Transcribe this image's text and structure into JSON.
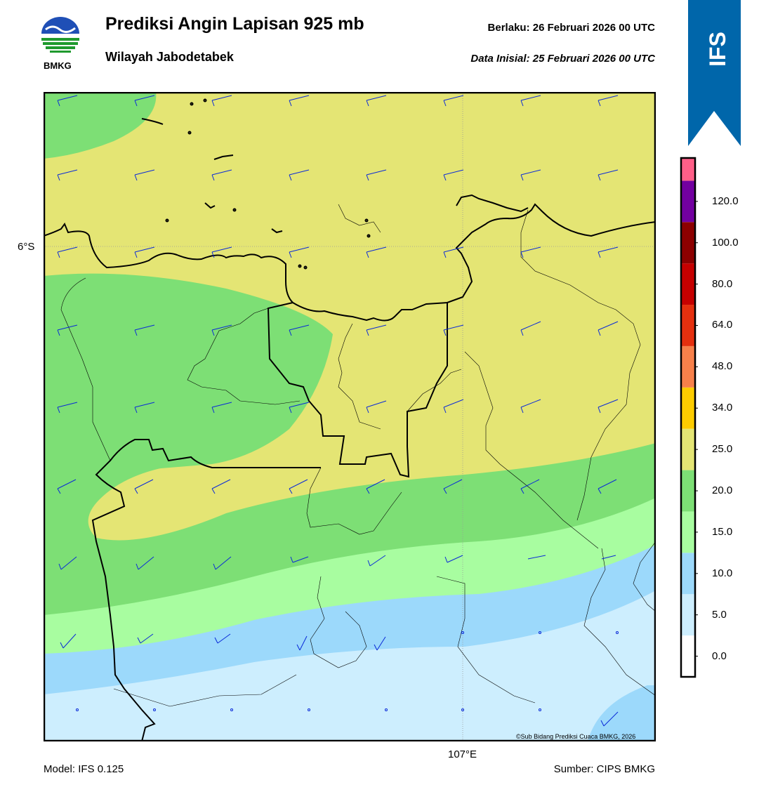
{
  "header": {
    "title": "Prediksi Angin Lapisan 925 mb",
    "subtitle": "Wilayah Jabodetabek",
    "valid": "Berlaku:  26 Februari 2026 00 UTC",
    "initial": "Data Inisial:  25 Februari 2026 00 UTC",
    "logo_text": "BMKG"
  },
  "badge": {
    "text": "IFS",
    "color": "#0066aa"
  },
  "axes": {
    "lat_label": "6°S",
    "lon_label": "107°E"
  },
  "footer": {
    "model": "Model: IFS 0.125",
    "source": "Sumber: CIPS BMKG",
    "copyright": "©Sub Bidang Prediksi Cuaca BMKG, 2026"
  },
  "legend": {
    "labels": [
      "0.0",
      "5.0",
      "10.0",
      "15.0",
      "20.0",
      "25.0",
      "34.0",
      "48.0",
      "64.0",
      "80.0",
      "100.0",
      "120.0"
    ],
    "colors": [
      "#ffffff",
      "#cdeefe",
      "#9cd9fb",
      "#a8fda0",
      "#7ddf75",
      "#e4e574",
      "#fdcc00",
      "#f7804a",
      "#e5300f",
      "#c60000",
      "#8c0000",
      "#7200a0",
      "#ff5f88"
    ]
  },
  "map_colors": {
    "lightblue": "#cdeefe",
    "blue": "#9cd9fb",
    "lightgreen": "#a8fda0",
    "green": "#7ddf75",
    "yellow": "#e4e574",
    "barb": "#0a2ad8"
  }
}
